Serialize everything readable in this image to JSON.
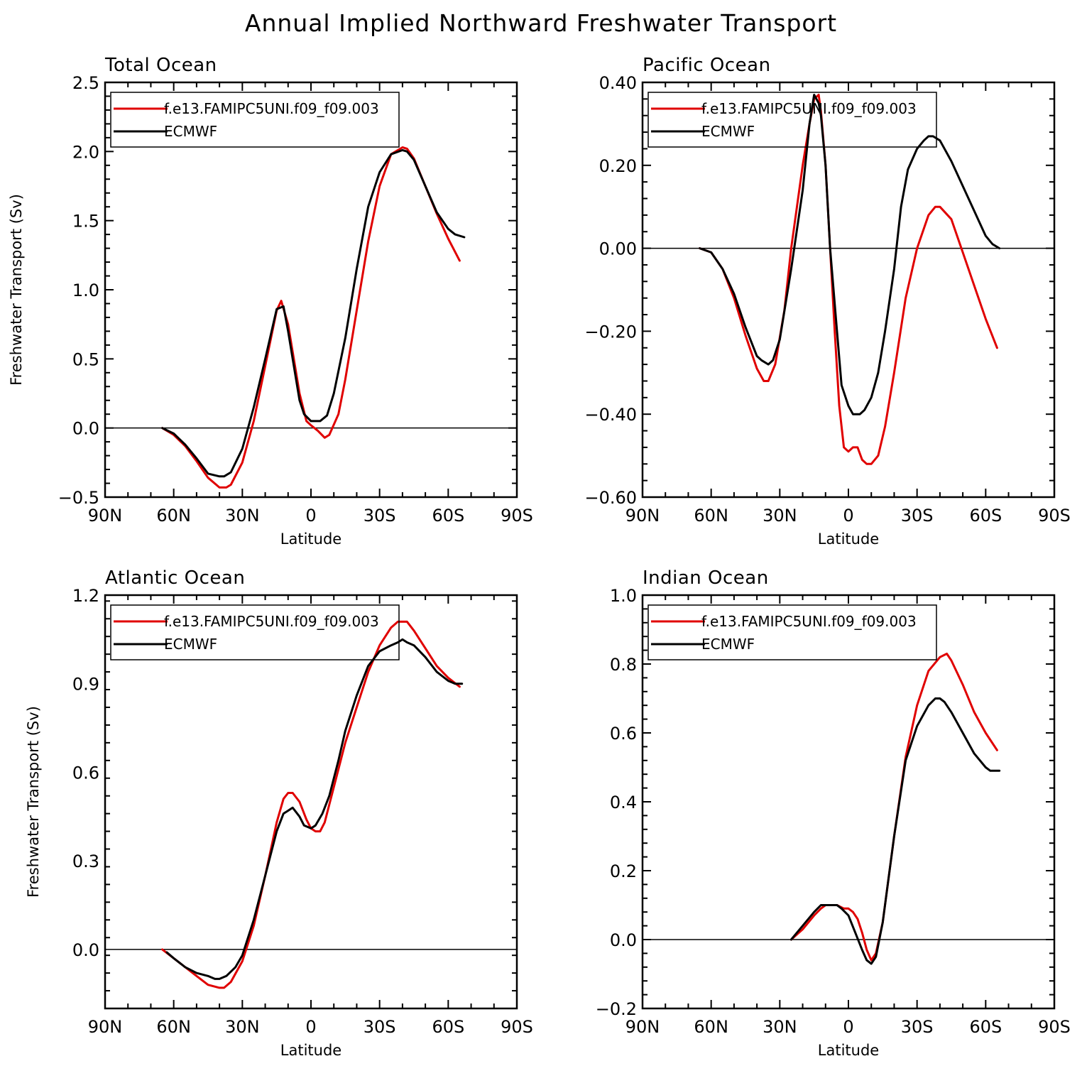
{
  "main_title": "Annual Implied Northward Freshwater Transport",
  "colors": {
    "model": "#e00000",
    "obs": "#000000",
    "axis": "#000000",
    "zero": "#000000"
  },
  "chart_data": [
    {
      "type": "line",
      "title": "Total Ocean",
      "xlabel": "Latitude",
      "ylabel": "Freshwater Transport (Sv)",
      "xlim": [
        -90,
        90
      ],
      "ylim": [
        -0.5,
        2.5
      ],
      "xticks": [
        -90,
        -60,
        -30,
        0,
        30,
        60,
        90
      ],
      "xtick_labels": [
        "90N",
        "60N",
        "30N",
        "0",
        "30S",
        "60S",
        "90S"
      ],
      "yticks": [
        -0.5,
        0.0,
        0.5,
        1.0,
        1.5,
        2.0,
        2.5
      ],
      "ytick_labels": [
        "−0.5",
        "0.0",
        "0.5",
        "1.0",
        "1.5",
        "2.0",
        "2.5"
      ],
      "legend": [
        "f.e13.FAMIPC5UNI.f09_f09.003",
        "ECMWF"
      ],
      "series": [
        {
          "name": "f.e13.FAMIPC5UNI.f09_f09.003",
          "color": "model",
          "x": [
            -65,
            -60,
            -55,
            -50,
            -45,
            -40,
            -37,
            -35,
            -30,
            -25,
            -20,
            -15,
            -13,
            -10,
            -5,
            -2,
            0,
            3,
            6,
            8,
            12,
            15,
            20,
            25,
            30,
            35,
            40,
            42,
            45,
            50,
            55,
            60,
            65
          ],
          "y": [
            0.0,
            -0.05,
            -0.13,
            -0.24,
            -0.36,
            -0.43,
            -0.43,
            -0.41,
            -0.25,
            0.05,
            0.45,
            0.85,
            0.92,
            0.75,
            0.25,
            0.05,
            0.02,
            -0.02,
            -0.07,
            -0.05,
            0.1,
            0.35,
            0.85,
            1.35,
            1.75,
            1.98,
            2.03,
            2.02,
            1.95,
            1.75,
            1.55,
            1.37,
            1.21
          ]
        },
        {
          "name": "ECMWF",
          "color": "obs",
          "x": [
            -65,
            -60,
            -55,
            -50,
            -45,
            -40,
            -38,
            -35,
            -30,
            -25,
            -20,
            -15,
            -12,
            -10,
            -5,
            -3,
            0,
            4,
            7,
            10,
            15,
            20,
            25,
            30,
            35,
            40,
            42,
            45,
            50,
            55,
            60,
            63,
            67
          ],
          "y": [
            0.0,
            -0.04,
            -0.12,
            -0.22,
            -0.33,
            -0.35,
            -0.35,
            -0.32,
            -0.15,
            0.15,
            0.5,
            0.86,
            0.88,
            0.7,
            0.2,
            0.1,
            0.05,
            0.05,
            0.09,
            0.25,
            0.65,
            1.15,
            1.6,
            1.85,
            1.98,
            2.01,
            2.0,
            1.94,
            1.75,
            1.56,
            1.44,
            1.4,
            1.38
          ]
        }
      ]
    },
    {
      "type": "line",
      "title": "Pacific Ocean",
      "xlabel": "Latitude",
      "ylabel": "",
      "xlim": [
        -90,
        90
      ],
      "ylim": [
        -0.6,
        0.4
      ],
      "xticks": [
        -90,
        -60,
        -30,
        0,
        30,
        60,
        90
      ],
      "xtick_labels": [
        "90N",
        "60N",
        "30N",
        "0",
        "30S",
        "60S",
        "90S"
      ],
      "yticks": [
        -0.6,
        -0.4,
        -0.2,
        0.0,
        0.2,
        0.4
      ],
      "ytick_labels": [
        "−0.60",
        "−0.40",
        "−0.20",
        "0.00",
        "0.20",
        "0.40"
      ],
      "legend": [
        "f.e13.FAMIPC5UNI.f09_f09.003",
        "ECMWF"
      ],
      "series": [
        {
          "name": "f.e13.FAMIPC5UNI.f09_f09.003",
          "color": "model",
          "x": [
            -65,
            -60,
            -55,
            -50,
            -45,
            -40,
            -37,
            -35,
            -32,
            -28,
            -25,
            -20,
            -17,
            -15,
            -13,
            -12,
            -10,
            -8,
            -6,
            -4,
            -2,
            0,
            2,
            4,
            6,
            8,
            10,
            13,
            16,
            20,
            25,
            30,
            35,
            38,
            40,
            45,
            50,
            55,
            60,
            65
          ],
          "y": [
            0.0,
            -0.01,
            -0.05,
            -0.12,
            -0.21,
            -0.29,
            -0.32,
            -0.32,
            -0.28,
            -0.15,
            0.0,
            0.2,
            0.3,
            0.36,
            0.37,
            0.33,
            0.2,
            0.0,
            -0.2,
            -0.38,
            -0.48,
            -0.49,
            -0.48,
            -0.48,
            -0.51,
            -0.52,
            -0.52,
            -0.5,
            -0.43,
            -0.3,
            -0.12,
            0.0,
            0.08,
            0.1,
            0.1,
            0.07,
            -0.01,
            -0.09,
            -0.17,
            -0.24
          ]
        },
        {
          "name": "ECMWF",
          "color": "obs",
          "x": [
            -65,
            -60,
            -55,
            -50,
            -45,
            -40,
            -38,
            -35,
            -33,
            -30,
            -25,
            -20,
            -17,
            -15,
            -13,
            -12,
            -10,
            -8,
            -5,
            -3,
            0,
            2,
            5,
            7,
            10,
            13,
            16,
            20,
            23,
            26,
            30,
            33,
            35,
            37,
            40,
            45,
            50,
            55,
            60,
            63,
            66
          ],
          "y": [
            0.0,
            -0.01,
            -0.05,
            -0.11,
            -0.19,
            -0.26,
            -0.27,
            -0.28,
            -0.27,
            -0.22,
            -0.05,
            0.14,
            0.3,
            0.37,
            0.35,
            0.32,
            0.2,
            0.0,
            -0.2,
            -0.33,
            -0.38,
            -0.4,
            -0.4,
            -0.39,
            -0.36,
            -0.3,
            -0.2,
            -0.05,
            0.1,
            0.19,
            0.24,
            0.26,
            0.27,
            0.27,
            0.26,
            0.21,
            0.15,
            0.09,
            0.03,
            0.01,
            0.0
          ]
        }
      ]
    },
    {
      "type": "line",
      "title": "Atlantic Ocean",
      "xlabel": "Latitude",
      "ylabel": "Freshwater Transport (Sv)",
      "xlim": [
        -90,
        90
      ],
      "ylim": [
        -0.2,
        1.2
      ],
      "xticks": [
        -90,
        -60,
        -30,
        0,
        30,
        60,
        90
      ],
      "xtick_labels": [
        "90N",
        "60N",
        "30N",
        "0",
        "30S",
        "60S",
        "90S"
      ],
      "yticks": [
        0.0,
        0.3,
        0.6,
        0.9,
        1.2
      ],
      "ytick_labels": [
        "0.0",
        "0.3",
        "0.6",
        "0.9",
        "1.2"
      ],
      "legend": [
        "f.e13.FAMIPC5UNI.f09_f09.003",
        "ECMWF"
      ],
      "series": [
        {
          "name": "f.e13.FAMIPC5UNI.f09_f09.003",
          "color": "model",
          "x": [
            -65,
            -60,
            -55,
            -50,
            -45,
            -40,
            -38,
            -35,
            -30,
            -25,
            -20,
            -15,
            -12,
            -10,
            -8,
            -5,
            -2,
            0,
            2,
            4,
            6,
            10,
            15,
            20,
            25,
            30,
            35,
            38,
            40,
            42,
            45,
            50,
            55,
            60,
            65
          ],
          "y": [
            0.0,
            -0.03,
            -0.06,
            -0.09,
            -0.12,
            -0.13,
            -0.13,
            -0.11,
            -0.04,
            0.08,
            0.25,
            0.43,
            0.51,
            0.53,
            0.53,
            0.5,
            0.44,
            0.41,
            0.4,
            0.4,
            0.43,
            0.55,
            0.7,
            0.82,
            0.94,
            1.03,
            1.09,
            1.11,
            1.11,
            1.11,
            1.08,
            1.02,
            0.96,
            0.92,
            0.89
          ]
        },
        {
          "name": "ECMWF",
          "color": "obs",
          "x": [
            -63,
            -60,
            -55,
            -50,
            -45,
            -42,
            -40,
            -37,
            -33,
            -30,
            -25,
            -20,
            -15,
            -12,
            -10,
            -8,
            -5,
            -3,
            0,
            2,
            5,
            8,
            12,
            15,
            20,
            25,
            30,
            35,
            38,
            40,
            42,
            45,
            50,
            55,
            60,
            63,
            66
          ],
          "y": [
            -0.01,
            -0.03,
            -0.06,
            -0.08,
            -0.09,
            -0.1,
            -0.1,
            -0.09,
            -0.06,
            -0.02,
            0.1,
            0.25,
            0.4,
            0.46,
            0.47,
            0.48,
            0.45,
            0.42,
            0.41,
            0.42,
            0.46,
            0.52,
            0.64,
            0.74,
            0.86,
            0.96,
            1.01,
            1.03,
            1.04,
            1.05,
            1.04,
            1.03,
            0.99,
            0.94,
            0.91,
            0.9,
            0.9
          ]
        }
      ]
    },
    {
      "type": "line",
      "title": "Indian Ocean",
      "xlabel": "Latitude",
      "ylabel": "",
      "xlim": [
        -90,
        90
      ],
      "ylim": [
        -0.2,
        1.0
      ],
      "xticks": [
        -90,
        -60,
        -30,
        0,
        30,
        60,
        90
      ],
      "xtick_labels": [
        "90N",
        "60N",
        "30N",
        "0",
        "30S",
        "60S",
        "90S"
      ],
      "yticks": [
        -0.2,
        0.0,
        0.2,
        0.4,
        0.6,
        0.8,
        1.0
      ],
      "ytick_labels": [
        "−0.2",
        "0.0",
        "0.2",
        "0.4",
        "0.6",
        "0.8",
        "1.0"
      ],
      "legend": [
        "f.e13.FAMIPC5UNI.f09_f09.003",
        "ECMWF"
      ],
      "series": [
        {
          "name": "f.e13.FAMIPC5UNI.f09_f09.003",
          "color": "model",
          "x": [
            -25,
            -20,
            -15,
            -12,
            -10,
            -8,
            -5,
            -2,
            0,
            2,
            4,
            6,
            8,
            10,
            12,
            15,
            20,
            25,
            30,
            35,
            40,
            43,
            45,
            50,
            55,
            60,
            65
          ],
          "y": [
            0.0,
            0.03,
            0.07,
            0.09,
            0.1,
            0.1,
            0.1,
            0.09,
            0.09,
            0.08,
            0.06,
            0.02,
            -0.03,
            -0.06,
            -0.04,
            0.05,
            0.3,
            0.53,
            0.68,
            0.78,
            0.82,
            0.83,
            0.81,
            0.74,
            0.66,
            0.6,
            0.55
          ]
        },
        {
          "name": "ECMWF",
          "color": "obs",
          "x": [
            -25,
            -20,
            -15,
            -12,
            -10,
            -8,
            -5,
            -3,
            0,
            3,
            6,
            8,
            10,
            12,
            15,
            20,
            25,
            30,
            35,
            38,
            40,
            42,
            45,
            50,
            55,
            60,
            62,
            66
          ],
          "y": [
            0.0,
            0.04,
            0.08,
            0.1,
            0.1,
            0.1,
            0.1,
            0.09,
            0.07,
            0.02,
            -0.03,
            -0.06,
            -0.07,
            -0.05,
            0.05,
            0.3,
            0.52,
            0.62,
            0.68,
            0.7,
            0.7,
            0.69,
            0.66,
            0.6,
            0.54,
            0.5,
            0.49,
            0.49
          ]
        }
      ]
    }
  ]
}
